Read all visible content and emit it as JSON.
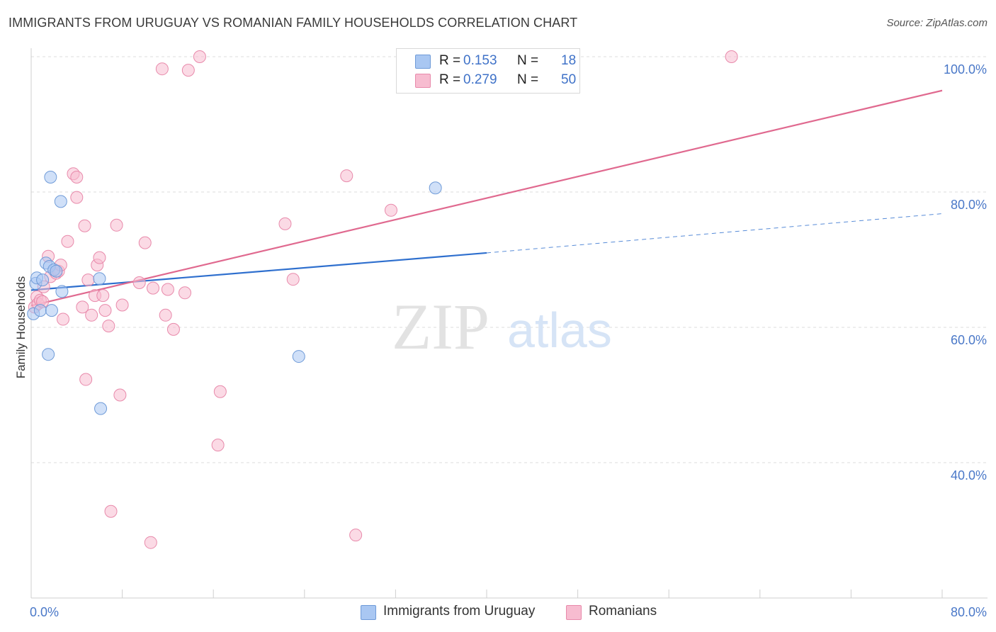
{
  "title": "IMMIGRANTS FROM URUGUAY VS ROMANIAN FAMILY HOUSEHOLDS CORRELATION CHART",
  "source": "Source: ZipAtlas.com",
  "watermark": {
    "zip": "ZIP",
    "atlas": "atlas"
  },
  "legend": {
    "rows": [
      {
        "r_label": "R =",
        "r_value": "0.153",
        "n_label": "N =",
        "n_value": "18",
        "color": "#a9c7f2",
        "border": "#6f9bd8"
      },
      {
        "r_label": "R =",
        "r_value": "0.279",
        "n_label": "N =",
        "n_value": "50",
        "color": "#f7bcd0",
        "border": "#e88aab"
      }
    ]
  },
  "bottom_legend": [
    {
      "label": "Immigrants from Uruguay",
      "color": "#a9c7f2",
      "border": "#6f9bd8"
    },
    {
      "label": "Romanians",
      "color": "#f7bcd0",
      "border": "#e88aab"
    }
  ],
  "chart_data": {
    "type": "scatter",
    "title": "IMMIGRANTS FROM URUGUAY VS ROMANIAN FAMILY HOUSEHOLDS CORRELATION CHART",
    "xlabel": "",
    "ylabel": "Family Households",
    "xlim": [
      0,
      80
    ],
    "ylim": [
      20,
      102
    ],
    "x_ticks": [
      "0.0%",
      "80.0%"
    ],
    "y_ticks": [
      {
        "value": 40,
        "label": "40.0%"
      },
      {
        "value": 60,
        "label": "60.0%"
      },
      {
        "value": 80,
        "label": "80.0%"
      },
      {
        "value": 100,
        "label": "100.0%"
      }
    ],
    "grid": "horizontal dashed",
    "series": [
      {
        "name": "Immigrants from Uruguay",
        "color": "#a9c7f2",
        "stroke": "#6f9bd8",
        "line_color": "#2e6fce",
        "trend": {
          "x0": 0,
          "y0": 65.5,
          "x1": 40,
          "y1": 71.0,
          "dashed_to_x": 80,
          "dashed_to_y": 76.8
        },
        "points": [
          [
            0.2,
            62.0
          ],
          [
            0.4,
            66.5
          ],
          [
            0.5,
            67.3
          ],
          [
            0.8,
            62.5
          ],
          [
            1.0,
            67.0
          ],
          [
            1.3,
            69.5
          ],
          [
            1.5,
            56.0
          ],
          [
            1.6,
            69.0
          ],
          [
            1.7,
            82.2
          ],
          [
            1.8,
            62.5
          ],
          [
            2.0,
            68.5
          ],
          [
            2.2,
            68.3
          ],
          [
            2.6,
            78.6
          ],
          [
            2.7,
            65.3
          ],
          [
            6.0,
            67.2
          ],
          [
            6.1,
            48.0
          ],
          [
            23.5,
            55.7
          ],
          [
            35.5,
            80.6
          ]
        ]
      },
      {
        "name": "Romanians",
        "color": "#f7bcd0",
        "stroke": "#e88aab",
        "line_color": "#e0698f",
        "trend": {
          "x0": 0,
          "y0": 63.2,
          "x1": 80,
          "y1": 95.0
        },
        "points": [
          [
            0.3,
            63.0
          ],
          [
            0.5,
            64.5
          ],
          [
            0.6,
            63.5
          ],
          [
            0.8,
            64.0
          ],
          [
            1.0,
            63.8
          ],
          [
            1.1,
            66.0
          ],
          [
            1.5,
            70.5
          ],
          [
            1.7,
            67.5
          ],
          [
            2.2,
            68.0
          ],
          [
            2.4,
            68.3
          ],
          [
            2.6,
            69.2
          ],
          [
            2.8,
            61.2
          ],
          [
            3.2,
            72.7
          ],
          [
            3.7,
            82.7
          ],
          [
            4.0,
            79.2
          ],
          [
            4.0,
            82.2
          ],
          [
            4.5,
            63.0
          ],
          [
            4.7,
            75.0
          ],
          [
            4.8,
            52.3
          ],
          [
            5.0,
            67.0
          ],
          [
            5.3,
            61.8
          ],
          [
            5.6,
            64.7
          ],
          [
            5.8,
            69.2
          ],
          [
            6.0,
            70.3
          ],
          [
            6.3,
            64.7
          ],
          [
            6.5,
            62.5
          ],
          [
            6.8,
            60.2
          ],
          [
            7.0,
            32.8
          ],
          [
            7.5,
            75.1
          ],
          [
            7.8,
            50.0
          ],
          [
            8.0,
            63.3
          ],
          [
            9.5,
            66.6
          ],
          [
            10.0,
            72.5
          ],
          [
            10.5,
            28.2
          ],
          [
            10.7,
            65.8
          ],
          [
            11.5,
            98.2
          ],
          [
            11.8,
            61.8
          ],
          [
            12.0,
            65.6
          ],
          [
            12.5,
            59.7
          ],
          [
            13.5,
            65.1
          ],
          [
            13.8,
            98.0
          ],
          [
            14.8,
            100.0
          ],
          [
            16.4,
            42.6
          ],
          [
            16.6,
            50.5
          ],
          [
            22.3,
            75.3
          ],
          [
            23.0,
            67.1
          ],
          [
            27.7,
            82.4
          ],
          [
            28.5,
            29.3
          ],
          [
            31.6,
            77.3
          ],
          [
            61.5,
            100.0
          ]
        ]
      }
    ]
  }
}
